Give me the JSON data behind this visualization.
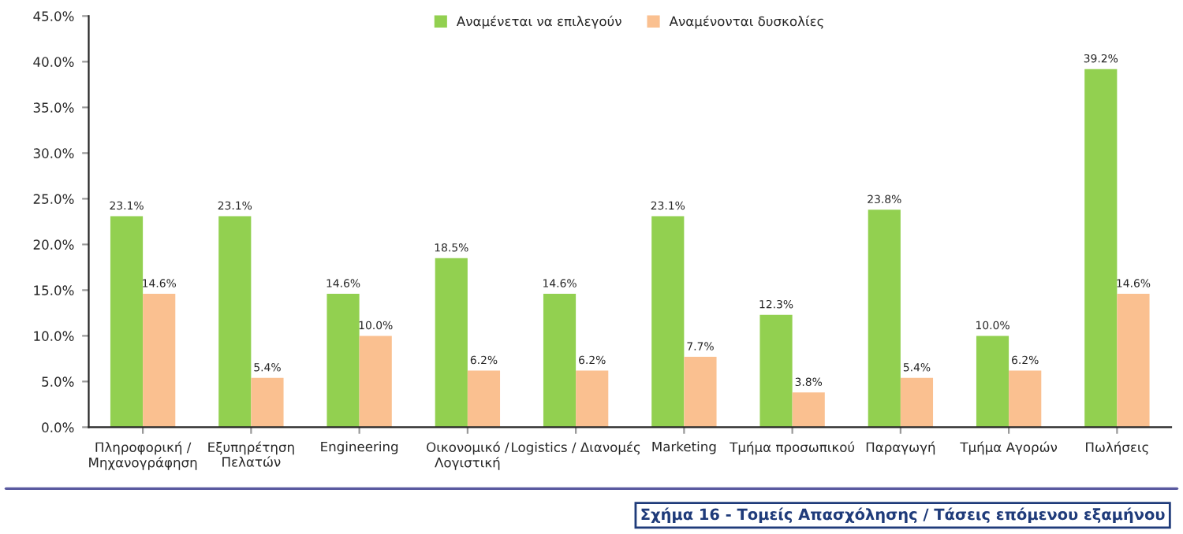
{
  "chart_data": {
    "type": "bar",
    "categories": [
      "Πληροφορική /\nΜηχανογράφηση",
      "Εξυπηρέτηση\nΠελατών",
      "Engineering",
      "Οικονομικό /\nΛογιστική",
      "Logistics / Διανομές",
      "Marketing",
      "Τμήμα προσωπικού",
      "Παραγωγή",
      "Τμήμα Αγορών",
      "Πωλήσεις"
    ],
    "series": [
      {
        "name": "Αναμένεται να επιλεγούν",
        "color": "#92d050",
        "values": [
          23.1,
          23.1,
          14.6,
          18.5,
          14.6,
          23.1,
          12.3,
          23.8,
          10.0,
          39.2
        ],
        "value_labels": [
          "23.1%",
          "23.1%",
          "14.6%",
          "18.5%",
          "14.6%",
          "23.1%",
          "12.3%",
          "23.8%",
          "10.0%",
          "39.2%"
        ]
      },
      {
        "name": "Αναμένονται δυσκολίες",
        "color": "#fac090",
        "values": [
          14.6,
          5.4,
          10.0,
          6.2,
          6.2,
          7.7,
          3.8,
          5.4,
          6.2,
          14.6
        ],
        "value_labels": [
          "14.6%",
          "5.4%",
          "10.0%",
          "6.2%",
          "6.2%",
          "7.7%",
          "3.8%",
          "5.4%",
          "6.2%",
          "14.6%"
        ]
      }
    ],
    "ylim": [
      0,
      45
    ],
    "yticks": [
      {
        "value": 0,
        "label": "0.0%"
      },
      {
        "value": 5,
        "label": "5.0%"
      },
      {
        "value": 10,
        "label": "10.0%"
      },
      {
        "value": 15,
        "label": "15.0%"
      },
      {
        "value": 20,
        "label": "20.0%"
      },
      {
        "value": 25,
        "label": "25.0%"
      },
      {
        "value": 30,
        "label": "30.0%"
      },
      {
        "value": 35,
        "label": "35.0%"
      },
      {
        "value": 40,
        "label": "40.0%"
      },
      {
        "value": 45,
        "label": "45.0%"
      }
    ],
    "grid": false,
    "legend": "top",
    "annotations": [
      "Σχήμα 16 - Τομείς Απασχόλησης / Τάσεις επόμενου εξαμήνου"
    ]
  }
}
